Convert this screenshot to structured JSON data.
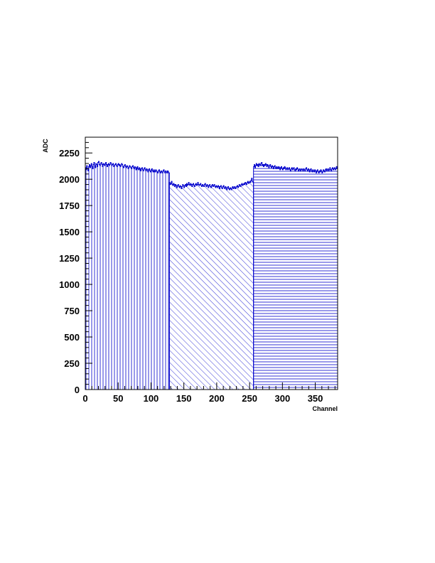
{
  "chart_data": {
    "type": "bar",
    "xlabel": "Channel",
    "ylabel": "ADC",
    "xlim": [
      0,
      384
    ],
    "ylim": [
      0,
      2400
    ],
    "xticks": [
      0,
      50,
      100,
      150,
      200,
      250,
      300,
      350
    ],
    "yticks": [
      0,
      250,
      500,
      750,
      1000,
      1250,
      1500,
      1750,
      2000,
      2250
    ],
    "grid": false,
    "legend": "none",
    "series": [
      {
        "x_range": [
          0,
          128
        ],
        "color": "#0000cc",
        "hatch": "vertical",
        "values": [
          2110,
          2090,
          2130,
          2100,
          2080,
          2120,
          2140,
          2110,
          2130,
          2150,
          2120,
          2100,
          2140,
          2160,
          2130,
          2110,
          2150,
          2140,
          2120,
          2160,
          2170,
          2140,
          2130,
          2150,
          2160,
          2140,
          2120,
          2150,
          2140,
          2130,
          2150,
          2160,
          2140,
          2120,
          2140,
          2150,
          2130,
          2140,
          2160,
          2150,
          2130,
          2140,
          2150,
          2120,
          2130,
          2140,
          2150,
          2130,
          2120,
          2140,
          2150,
          2130,
          2140,
          2120,
          2130,
          2150,
          2140,
          2120,
          2110,
          2130,
          2140,
          2120,
          2110,
          2130,
          2120,
          2100,
          2110,
          2130,
          2120,
          2110,
          2100,
          2120,
          2130,
          2110,
          2100,
          2120,
          2110,
          2090,
          2110,
          2120,
          2100,
          2090,
          2110,
          2100,
          2080,
          2100,
          2110,
          2090,
          2080,
          2100,
          2110,
          2090,
          2080,
          2100,
          2090,
          2070,
          2090,
          2100,
          2080,
          2070,
          2090,
          2100,
          2080,
          2070,
          2090,
          2080,
          2070,
          2090,
          2080,
          2070,
          2060,
          2080,
          2090,
          2070,
          2060,
          2080,
          2070,
          2060,
          2080,
          2090,
          2070,
          2060,
          2080,
          2070,
          2060,
          2080,
          2070,
          2060
        ]
      },
      {
        "x_range": [
          128,
          256
        ],
        "color": "#0000cc",
        "hatch": "diagonal",
        "values": [
          1970,
          1950,
          1960,
          1980,
          1950,
          1940,
          1960,
          1950,
          1930,
          1950,
          1940,
          1920,
          1940,
          1950,
          1930,
          1920,
          1940,
          1930,
          1910,
          1930,
          1950,
          1940,
          1920,
          1940,
          1950,
          1930,
          1960,
          1940,
          1950,
          1970,
          1950,
          1940,
          1960,
          1950,
          1930,
          1950,
          1960,
          1940,
          1930,
          1950,
          1960,
          1940,
          1950,
          1970,
          1950,
          1940,
          1950,
          1960,
          1940,
          1930,
          1950,
          1940,
          1930,
          1950,
          1960,
          1940,
          1930,
          1950,
          1940,
          1920,
          1940,
          1950,
          1930,
          1920,
          1940,
          1950,
          1930,
          1940,
          1950,
          1930,
          1920,
          1940,
          1930,
          1920,
          1940,
          1930,
          1910,
          1930,
          1940,
          1920,
          1910,
          1930,
          1940,
          1920,
          1910,
          1930,
          1920,
          1900,
          1920,
          1930,
          1910,
          1900,
          1920,
          1910,
          1900,
          1920,
          1930,
          1910,
          1920,
          1930,
          1910,
          1920,
          1930,
          1940,
          1920,
          1930,
          1950,
          1940,
          1930,
          1950,
          1960,
          1940,
          1950,
          1960,
          1950,
          1970,
          1960,
          1950,
          1970,
          1980,
          1960,
          1970,
          1980,
          1970,
          1990,
          2010,
          1980,
          1970
        ]
      },
      {
        "x_range": [
          256,
          384
        ],
        "color": "#0000cc",
        "hatch": "horizontal",
        "values": [
          2120,
          2140,
          2110,
          2130,
          2150,
          2130,
          2140,
          2120,
          2150,
          2140,
          2130,
          2150,
          2160,
          2130,
          2140,
          2120,
          2140,
          2130,
          2150,
          2140,
          2120,
          2140,
          2130,
          2110,
          2130,
          2140,
          2120,
          2110,
          2130,
          2120,
          2100,
          2120,
          2130,
          2110,
          2100,
          2120,
          2110,
          2100,
          2120,
          2110,
          2090,
          2110,
          2120,
          2100,
          2090,
          2110,
          2100,
          2120,
          2110,
          2090,
          2100,
          2110,
          2090,
          2100,
          2110,
          2090,
          2080,
          2100,
          2110,
          2090,
          2100,
          2110,
          2090,
          2080,
          2100,
          2090,
          2110,
          2100,
          2080,
          2090,
          2100,
          2080,
          2090,
          2100,
          2090,
          2080,
          2100,
          2090,
          2080,
          2100,
          2110,
          2090,
          2080,
          2100,
          2090,
          2070,
          2090,
          2100,
          2080,
          2070,
          2090,
          2080,
          2070,
          2090,
          2080,
          2060,
          2080,
          2090,
          2070,
          2060,
          2080,
          2070,
          2090,
          2080,
          2060,
          2070,
          2090,
          2080,
          2070,
          2090,
          2100,
          2080,
          2090,
          2100,
          2080,
          2090,
          2110,
          2090,
          2080,
          2100,
          2110,
          2090,
          2100,
          2110,
          2090,
          2100,
          2120,
          2100
        ]
      }
    ]
  }
}
